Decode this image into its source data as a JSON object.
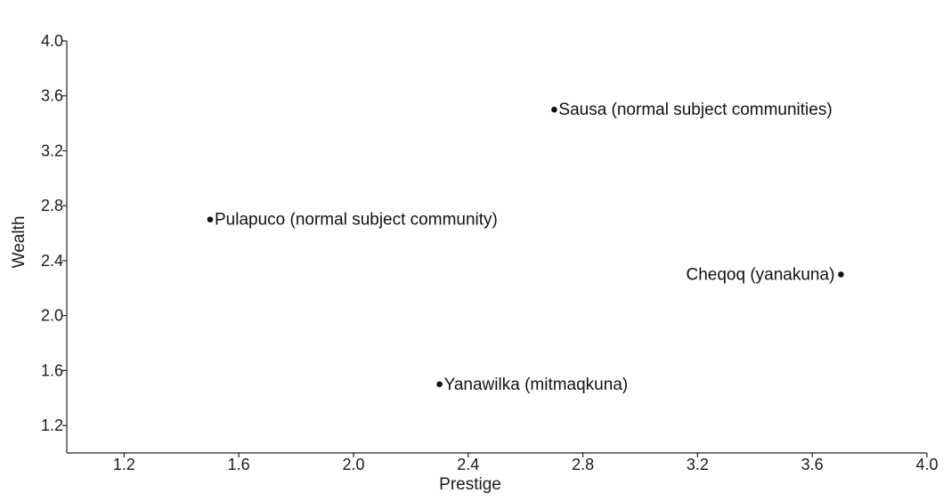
{
  "chart_data": {
    "type": "scatter",
    "xlabel": "Prestige",
    "ylabel": "Wealth",
    "xlim": [
      1.0,
      4.0
    ],
    "ylim": [
      1.0,
      4.0
    ],
    "x_ticks": [
      "1.2",
      "1.6",
      "2.0",
      "2.4",
      "2.8",
      "3.2",
      "3.6",
      "4.0"
    ],
    "y_ticks": [
      "1.2",
      "1.6",
      "2.0",
      "2.4",
      "2.8",
      "3.2",
      "3.6",
      "4.0"
    ],
    "grid": false,
    "points": [
      {
        "label": "Sausa (normal subject communities)",
        "x": 2.7,
        "y": 3.5,
        "label_side": "right"
      },
      {
        "label": "Pulapuco (normal subject community)",
        "x": 1.5,
        "y": 2.7,
        "label_side": "right"
      },
      {
        "label": "Cheqoq (yanakuna)",
        "x": 3.7,
        "y": 2.3,
        "label_side": "left"
      },
      {
        "label": "Yanawilka (mitmaqkuna)",
        "x": 2.3,
        "y": 1.5,
        "label_side": "right"
      }
    ]
  },
  "colors": {
    "marker": "#111111",
    "text": "#1a1a1a"
  }
}
